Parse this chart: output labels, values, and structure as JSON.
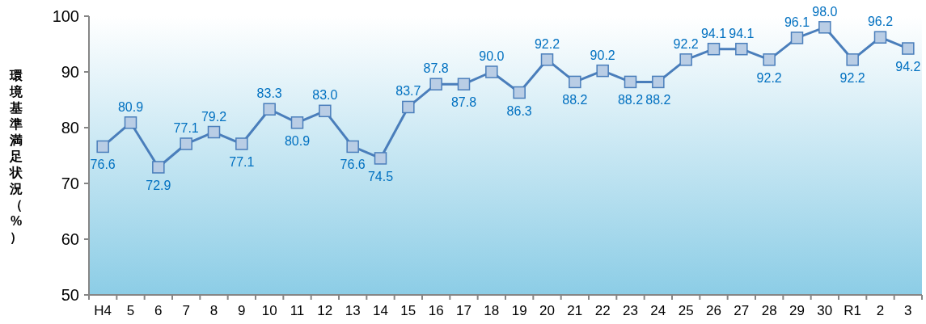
{
  "chart_data": {
    "type": "line",
    "ylabel": "環境基準満足状況（%）",
    "categories": [
      "H4",
      "5",
      "6",
      "7",
      "8",
      "9",
      "10",
      "11",
      "12",
      "13",
      "14",
      "15",
      "16",
      "17",
      "18",
      "19",
      "20",
      "21",
      "22",
      "23",
      "24",
      "25",
      "26",
      "27",
      "28",
      "29",
      "30",
      "R1",
      "2",
      "3"
    ],
    "series": [
      {
        "color": "#4a7ebb",
        "values": [
          76.6,
          80.9,
          72.9,
          77.1,
          79.2,
          77.1,
          83.3,
          80.9,
          83.0,
          76.6,
          74.5,
          83.7,
          87.8,
          87.8,
          90.0,
          86.3,
          92.2,
          88.2,
          90.2,
          88.2,
          88.2,
          92.2,
          94.1,
          94.1,
          92.2,
          96.1,
          98.0,
          92.2,
          96.2,
          94.2
        ]
      }
    ],
    "ylim": [
      50,
      100
    ],
    "yticks": [
      50,
      60,
      70,
      80,
      90,
      100
    ],
    "marker": "square",
    "line_style": "solid",
    "value_labels": [
      "76.6",
      "80.9",
      "72.9",
      "77.1",
      "79.2",
      "77.1",
      "83.3",
      "80.9",
      "83.0",
      "76.6",
      "74.5",
      "83.7",
      "87.8",
      "87.8",
      "90.0",
      "86.3",
      "92.2",
      "88.2",
      "90.2",
      "88.2",
      "88.2",
      "92.2",
      "94.1",
      "94.1",
      "92.2",
      "96.1",
      "98.0",
      "92.2",
      "96.2",
      "94.2"
    ]
  }
}
